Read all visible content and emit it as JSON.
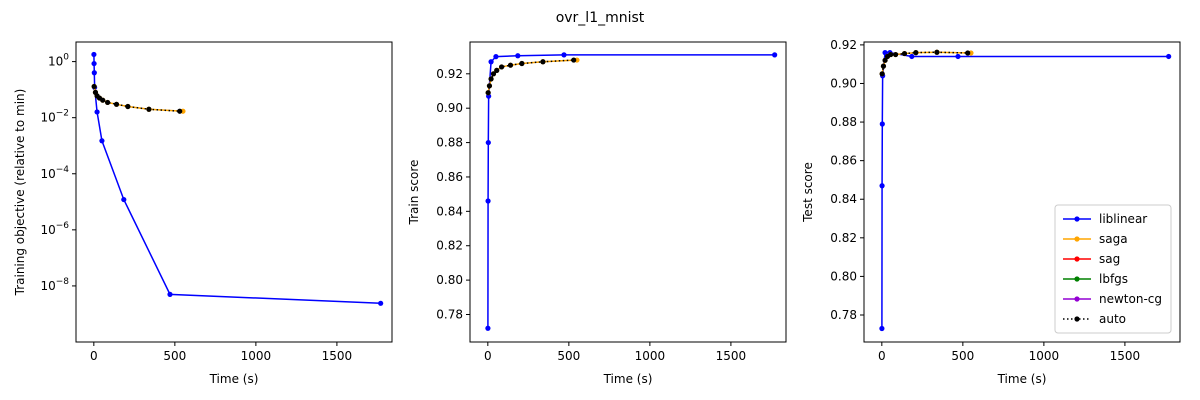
{
  "suptitle": "ovr_l1_mnist",
  "legend": {
    "placement": "lower-right",
    "entries": [
      {
        "name": "liblinear",
        "color": "#0000ff",
        "style": "solid"
      },
      {
        "name": "saga",
        "color": "#ffa500",
        "style": "solid"
      },
      {
        "name": "sag",
        "color": "#ff0000",
        "style": "solid"
      },
      {
        "name": "lbfgs",
        "color": "#008000",
        "style": "solid"
      },
      {
        "name": "newton-cg",
        "color": "#9400d3",
        "style": "solid"
      },
      {
        "name": "auto",
        "color": "#000000",
        "style": "dotted"
      }
    ]
  },
  "chart_data": [
    {
      "type": "line",
      "xlabel": "Time (s)",
      "ylabel": "Training objective (relative to min)",
      "yscale": "log",
      "xlim": [
        -110,
        1840
      ],
      "ylim": [
        1e-10,
        5
      ],
      "xticks": [
        0,
        500,
        1000,
        1500
      ],
      "xtick_labels": [
        "0",
        "500",
        "1000",
        "1500"
      ],
      "yticks": [
        1e-08,
        1e-06,
        0.0001,
        0.01,
        1
      ],
      "ytick_labels": [
        {
          "base": "10",
          "exp": "−8"
        },
        {
          "base": "10",
          "exp": "−6"
        },
        {
          "base": "10",
          "exp": "−4"
        },
        {
          "base": "10",
          "exp": "−2"
        },
        {
          "base": "10",
          "exp": "0"
        }
      ],
      "series": [
        {
          "name": "liblinear",
          "color": "#0000ff",
          "style": "solid",
          "x": [
            0.5,
            1.5,
            3,
            5,
            20,
            50,
            185,
            470,
            1770
          ],
          "y": [
            1.8,
            0.85,
            0.4,
            0.12,
            0.016,
            0.0015,
            1.2e-05,
            5e-09,
            2.4e-09
          ]
        },
        {
          "name": "saga",
          "color": "#ffa500",
          "style": "solid",
          "x": [
            2,
            10,
            20,
            35,
            55,
            85,
            140,
            210,
            340,
            550
          ],
          "y": [
            0.13,
            0.08,
            0.06,
            0.05,
            0.042,
            0.035,
            0.03,
            0.025,
            0.02,
            0.017
          ]
        },
        {
          "name": "auto",
          "color": "#000000",
          "style": "dotted",
          "x": [
            2,
            10,
            20,
            35,
            55,
            85,
            140,
            210,
            340,
            530
          ],
          "y": [
            0.13,
            0.08,
            0.06,
            0.05,
            0.042,
            0.035,
            0.03,
            0.025,
            0.02,
            0.017
          ]
        }
      ]
    },
    {
      "type": "line",
      "xlabel": "Time (s)",
      "ylabel": "Train score",
      "yscale": "linear",
      "xlim": [
        -110,
        1840
      ],
      "ylim": [
        0.764,
        0.9385
      ],
      "xticks": [
        0,
        500,
        1000,
        1500
      ],
      "xtick_labels": [
        "0",
        "500",
        "1000",
        "1500"
      ],
      "yticks": [
        0.78,
        0.8,
        0.82,
        0.84,
        0.86,
        0.88,
        0.9,
        0.92
      ],
      "ytick_labels": [
        "0.78",
        "0.80",
        "0.82",
        "0.84",
        "0.86",
        "0.88",
        "0.90",
        "0.92"
      ],
      "series": [
        {
          "name": "liblinear",
          "color": "#0000ff",
          "style": "solid",
          "x": [
            0.5,
            1.5,
            3,
            5,
            20,
            50,
            185,
            470,
            1770
          ],
          "y": [
            0.772,
            0.846,
            0.88,
            0.907,
            0.927,
            0.93,
            0.9305,
            0.931,
            0.931
          ],
          "markers": true
        },
        {
          "name": "saga",
          "color": "#ffa500",
          "style": "solid",
          "x": [
            2,
            10,
            20,
            35,
            55,
            85,
            140,
            210,
            340,
            550
          ],
          "y": [
            0.909,
            0.913,
            0.917,
            0.92,
            0.922,
            0.924,
            0.925,
            0.926,
            0.927,
            0.928
          ],
          "markers": true
        },
        {
          "name": "auto",
          "color": "#000000",
          "style": "dotted",
          "x": [
            2,
            10,
            20,
            35,
            55,
            85,
            140,
            210,
            340,
            530
          ],
          "y": [
            0.909,
            0.913,
            0.917,
            0.92,
            0.922,
            0.924,
            0.925,
            0.926,
            0.927,
            0.928
          ],
          "markers": true
        }
      ]
    },
    {
      "type": "line",
      "xlabel": "Time (s)",
      "ylabel": "Test score",
      "yscale": "linear",
      "xlim": [
        -110,
        1840
      ],
      "ylim": [
        0.766,
        0.9215
      ],
      "xticks": [
        0,
        500,
        1000,
        1500
      ],
      "xtick_labels": [
        "0",
        "500",
        "1000",
        "1500"
      ],
      "yticks": [
        0.78,
        0.8,
        0.82,
        0.84,
        0.86,
        0.88,
        0.9,
        0.92
      ],
      "ytick_labels": [
        "0.78",
        "0.80",
        "0.82",
        "0.84",
        "0.86",
        "0.88",
        "0.90",
        "0.92"
      ],
      "series": [
        {
          "name": "liblinear",
          "color": "#0000ff",
          "style": "solid",
          "x": [
            0.5,
            1.5,
            3,
            5,
            20,
            50,
            185,
            470,
            1770
          ],
          "y": [
            0.773,
            0.847,
            0.879,
            0.904,
            0.916,
            0.916,
            0.914,
            0.914,
            0.914
          ],
          "markers": true
        },
        {
          "name": "saga",
          "color": "#ffa500",
          "style": "solid",
          "x": [
            2,
            10,
            20,
            35,
            55,
            85,
            140,
            210,
            340,
            550
          ],
          "y": [
            0.905,
            0.909,
            0.912,
            0.914,
            0.915,
            0.915,
            0.9155,
            0.916,
            0.9162,
            0.9158
          ],
          "markers": true
        },
        {
          "name": "auto",
          "color": "#000000",
          "style": "dotted",
          "x": [
            2,
            10,
            20,
            35,
            55,
            85,
            140,
            210,
            340,
            530
          ],
          "y": [
            0.905,
            0.909,
            0.912,
            0.914,
            0.915,
            0.915,
            0.9155,
            0.916,
            0.9162,
            0.9158
          ],
          "markers": true
        }
      ]
    }
  ]
}
